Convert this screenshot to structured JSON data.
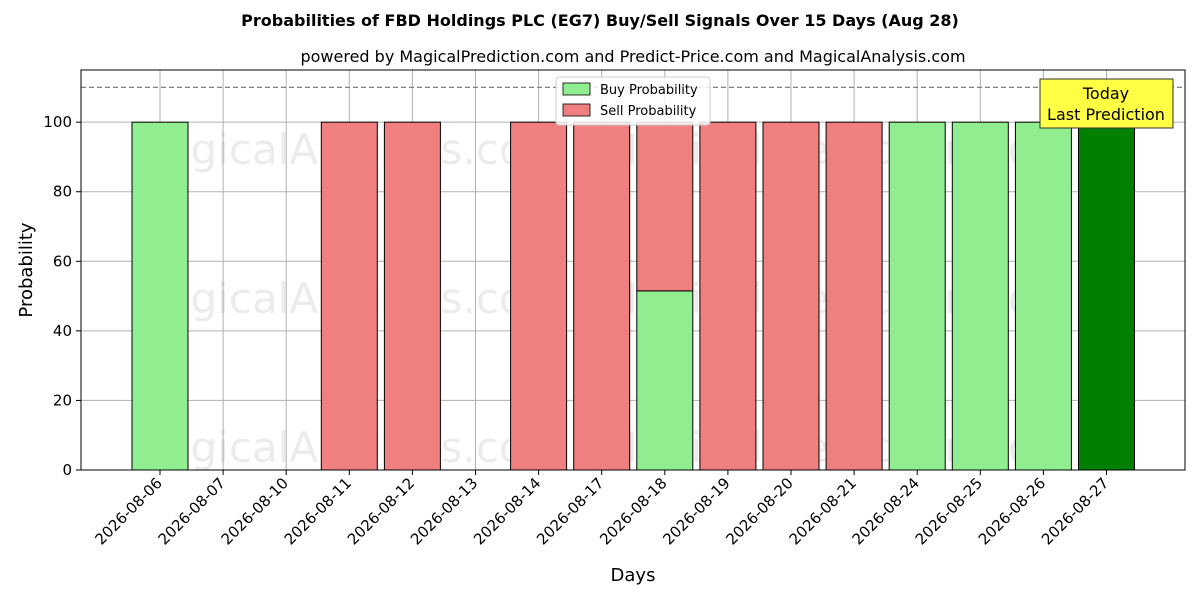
{
  "chart_data": {
    "type": "bar",
    "title": "Probabilities of FBD Holdings PLC (EG7) Buy/Sell Signals Over 15 Days (Aug 28)",
    "subtitle": "powered by MagicalPrediction.com and Predict-Price.com and MagicalAnalysis.com",
    "xlabel": "Days",
    "ylabel": "Probability",
    "ylim": [
      0,
      115
    ],
    "yticks": [
      0,
      20,
      40,
      60,
      80,
      100
    ],
    "reference_line": 110,
    "grid": true,
    "legend_position": "top-center",
    "categories": [
      "2026-08-06",
      "2026-08-07",
      "2026-08-10",
      "2026-08-11",
      "2026-08-12",
      "2026-08-13",
      "2026-08-14",
      "2026-08-17",
      "2026-08-18",
      "2026-08-19",
      "2026-08-20",
      "2026-08-21",
      "2026-08-24",
      "2026-08-25",
      "2026-08-26",
      "2026-08-27"
    ],
    "series": [
      {
        "name": "Buy Probability",
        "color": "#90ee90",
        "values": [
          100,
          0,
          0,
          0,
          0,
          0,
          0,
          0,
          51.5,
          0,
          0,
          0,
          100,
          100,
          100,
          100
        ]
      },
      {
        "name": "Sell Probability",
        "color": "#f08080",
        "values": [
          0,
          0,
          0,
          100,
          100,
          0,
          100,
          100,
          48.5,
          100,
          100,
          100,
          0,
          0,
          0,
          0
        ]
      }
    ],
    "highlight": {
      "index": 15,
      "color": "#008000"
    },
    "annotation": {
      "line1": "Today",
      "line2": "Last Prediction",
      "color": "#ffff44"
    },
    "watermarks": [
      "MagicalAnalysis.com",
      "MagicalPrediction.com"
    ]
  }
}
